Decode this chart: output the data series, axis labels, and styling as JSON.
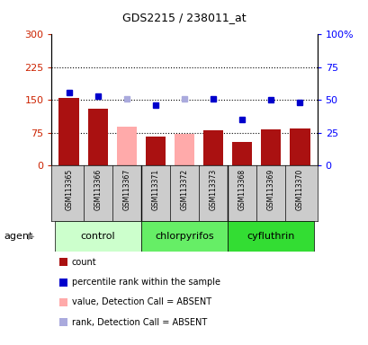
{
  "title": "GDS2215 / 238011_at",
  "samples": [
    "GSM113365",
    "GSM113366",
    "GSM113367",
    "GSM113371",
    "GSM113372",
    "GSM113373",
    "GSM113368",
    "GSM113369",
    "GSM113370"
  ],
  "bar_values": [
    155,
    130,
    90,
    67,
    72,
    80,
    55,
    82,
    85
  ],
  "bar_absent": [
    false,
    false,
    true,
    false,
    true,
    false,
    false,
    false,
    false
  ],
  "rank_values": [
    56,
    53,
    51,
    46,
    51,
    51,
    35,
    50,
    48
  ],
  "rank_absent": [
    false,
    false,
    true,
    false,
    true,
    false,
    false,
    false,
    false
  ],
  "bar_color_present": "#aa1111",
  "bar_color_absent": "#ffaaaa",
  "rank_color_present": "#0000cc",
  "rank_color_absent": "#aaaadd",
  "group_control_color": "#ccffcc",
  "group_chlorpyrifos_color": "#66ee66",
  "group_cyfluthrin_color": "#33dd33",
  "groups": [
    {
      "label": "control",
      "indices": [
        0,
        1,
        2
      ],
      "color": "#ccffcc"
    },
    {
      "label": "chlorpyrifos",
      "indices": [
        3,
        4,
        5
      ],
      "color": "#66ee66"
    },
    {
      "label": "cyfluthrin",
      "indices": [
        6,
        7,
        8
      ],
      "color": "#33dd33"
    }
  ],
  "ylim_left": [
    0,
    300
  ],
  "ylim_right": [
    0,
    100
  ],
  "yticks_left": [
    0,
    75,
    150,
    225,
    300
  ],
  "yticks_right": [
    0,
    25,
    50,
    75,
    100
  ],
  "yticklabels_right": [
    "0",
    "25",
    "50",
    "75",
    "100%"
  ],
  "hlines": [
    75,
    150,
    225
  ],
  "agent_label": "agent",
  "sample_bg_color": "#cccccc",
  "legend_items": [
    {
      "label": "count",
      "color": "#aa1111"
    },
    {
      "label": "percentile rank within the sample",
      "color": "#0000cc"
    },
    {
      "label": "value, Detection Call = ABSENT",
      "color": "#ffaaaa"
    },
    {
      "label": "rank, Detection Call = ABSENT",
      "color": "#aaaadd"
    }
  ]
}
